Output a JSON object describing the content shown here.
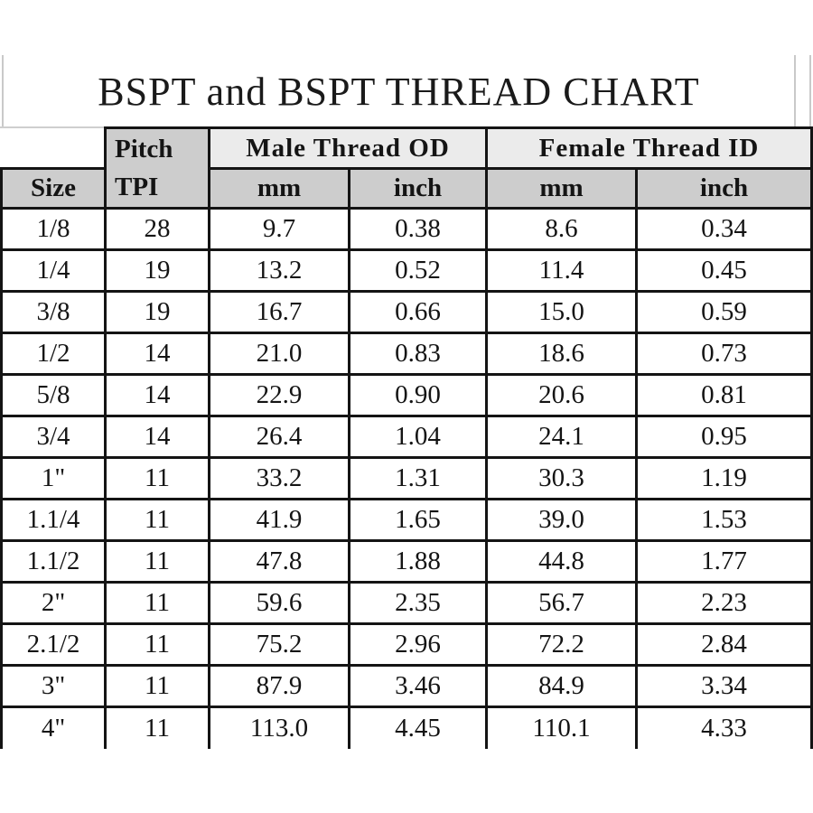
{
  "title": "BSPT and BSPT THREAD CHART",
  "table": {
    "headers": {
      "size": "Size",
      "pitch_line1": "Pitch",
      "pitch_line2": "TPI",
      "male_od": "Male Thread OD",
      "female_id": "Female Thread ID",
      "mm": "mm",
      "inch": "inch"
    },
    "rows": [
      [
        "1/8",
        "28",
        "9.7",
        "0.38",
        "8.6",
        "0.34"
      ],
      [
        "1/4",
        "19",
        "13.2",
        "0.52",
        "11.4",
        "0.45"
      ],
      [
        "3/8",
        "19",
        "16.7",
        "0.66",
        "15.0",
        "0.59"
      ],
      [
        "1/2",
        "14",
        "21.0",
        "0.83",
        "18.6",
        "0.73"
      ],
      [
        "5/8",
        "14",
        "22.9",
        "0.90",
        "20.6",
        "0.81"
      ],
      [
        "3/4",
        "14",
        "26.4",
        "1.04",
        "24.1",
        "0.95"
      ],
      [
        "1\"",
        "11",
        "33.2",
        "1.31",
        "30.3",
        "1.19"
      ],
      [
        "1.1/4",
        "11",
        "41.9",
        "1.65",
        "39.0",
        "1.53"
      ],
      [
        "1.1/2",
        "11",
        "47.8",
        "1.88",
        "44.8",
        "1.77"
      ],
      [
        "2\"",
        "11",
        "59.6",
        "2.35",
        "56.7",
        "2.23"
      ],
      [
        "2.1/2",
        "11",
        "75.2",
        "2.96",
        "72.2",
        "2.84"
      ],
      [
        "3\"",
        "11",
        "87.9",
        "3.46",
        "84.9",
        "3.34"
      ],
      [
        "4\"",
        "11",
        "113.0",
        "4.45",
        "110.1",
        "4.33"
      ]
    ]
  },
  "colors": {
    "group_header_bg": "#ebebeb",
    "sub_header_bg": "#cdcdcd",
    "border_dark": "#141414",
    "border_light": "#c9c9c9",
    "body_bg": "#ffffff"
  },
  "chart_data": {
    "type": "table",
    "title": "BSPT and BSPT THREAD CHART",
    "columns": [
      "Size",
      "Pitch TPI",
      "Male Thread OD mm",
      "Male Thread OD inch",
      "Female Thread ID mm",
      "Female Thread ID inch"
    ],
    "rows": [
      [
        "1/8",
        28,
        9.7,
        0.38,
        8.6,
        0.34
      ],
      [
        "1/4",
        19,
        13.2,
        0.52,
        11.4,
        0.45
      ],
      [
        "3/8",
        19,
        16.7,
        0.66,
        15.0,
        0.59
      ],
      [
        "1/2",
        14,
        21.0,
        0.83,
        18.6,
        0.73
      ],
      [
        "5/8",
        14,
        22.9,
        0.9,
        20.6,
        0.81
      ],
      [
        "3/4",
        14,
        26.4,
        1.04,
        24.1,
        0.95
      ],
      [
        "1\"",
        11,
        33.2,
        1.31,
        30.3,
        1.19
      ],
      [
        "1.1/4",
        11,
        41.9,
        1.65,
        39.0,
        1.53
      ],
      [
        "1.1/2",
        11,
        47.8,
        1.88,
        44.8,
        1.77
      ],
      [
        "2\"",
        11,
        59.6,
        2.35,
        56.7,
        2.23
      ],
      [
        "2.1/2",
        11,
        75.2,
        2.96,
        72.2,
        2.84
      ],
      [
        "3\"",
        11,
        87.9,
        3.46,
        84.9,
        3.34
      ],
      [
        "4\"",
        11,
        113.0,
        4.45,
        110.1,
        4.33
      ]
    ]
  }
}
